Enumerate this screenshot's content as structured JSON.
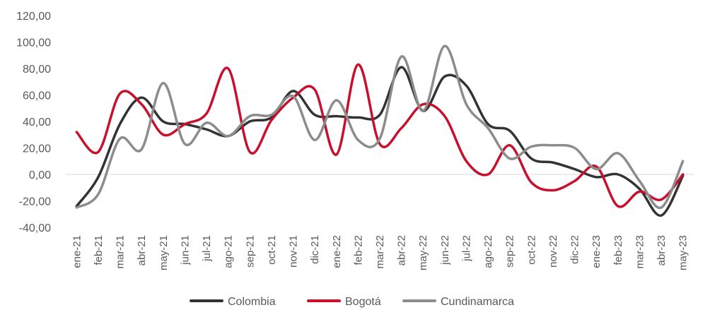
{
  "chart_data": {
    "type": "line",
    "title": "",
    "xlabel": "",
    "ylabel": "",
    "ylim": [
      -40,
      120
    ],
    "y_ticks": [
      -40,
      -20,
      0,
      20,
      40,
      60,
      80,
      100,
      120
    ],
    "y_tick_labels": [
      "-40,00",
      "-20,00",
      "0,00",
      "20,00",
      "40,00",
      "60,00",
      "80,00",
      "100,00",
      "120,00"
    ],
    "grid": false,
    "zero_line": true,
    "legend_position": "bottom",
    "categories": [
      "ene-21",
      "feb-21",
      "mar-21",
      "abr-21",
      "may-21",
      "jun-21",
      "jul-21",
      "ago-21",
      "sep-21",
      "oct-21",
      "nov-21",
      "dic-21",
      "ene-22",
      "feb-22",
      "mar-22",
      "abr-22",
      "may-22",
      "jun-22",
      "jul-22",
      "ago-22",
      "sep-22",
      "oct-22",
      "nov-22",
      "dic-22",
      "ene-23",
      "feb-23",
      "mar-23",
      "abr-23",
      "may-23"
    ],
    "series": [
      {
        "name": "Colombia",
        "color": "#333333",
        "values": [
          -24,
          -2,
          38,
          58,
          40,
          38,
          34,
          29,
          40,
          43,
          63,
          45,
          44,
          43,
          45,
          81,
          48,
          74,
          67,
          38,
          33,
          12,
          9,
          4,
          -2,
          0,
          -11,
          -31,
          -1
        ]
      },
      {
        "name": "Bogotá",
        "color": "#C8102E",
        "values": [
          32,
          17,
          61,
          53,
          30,
          38,
          46,
          80,
          17,
          41,
          58,
          64,
          15,
          83,
          23,
          35,
          53,
          44,
          10,
          0,
          22,
          -6,
          -12,
          -5,
          6,
          -24,
          -13,
          -19,
          0
        ]
      },
      {
        "name": "Cundinamarca",
        "color": "#8C8C8C",
        "values": [
          -25,
          -15,
          27,
          19,
          69,
          23,
          39,
          29,
          44,
          45,
          59,
          26,
          56,
          26,
          27,
          89,
          48,
          97,
          53,
          35,
          12,
          21,
          22,
          20,
          4,
          16,
          -5,
          -25,
          10
        ]
      }
    ]
  }
}
